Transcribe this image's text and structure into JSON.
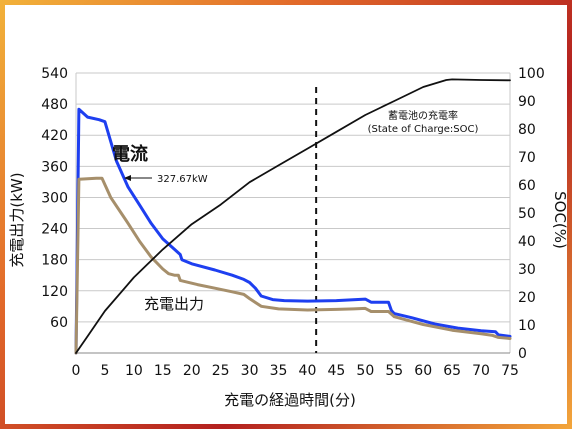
{
  "chart_data": {
    "type": "line",
    "x_label": "充電の経過時間(分)",
    "y_left_label": "充電出力(kW)",
    "y_right_label": "SOC(%)",
    "x_ticks": [
      "0",
      "5",
      "10",
      "15",
      "20",
      "25",
      "30",
      "35",
      "40",
      "45",
      "50",
      "55",
      "60",
      "65",
      "70",
      "75"
    ],
    "y_left_ticks": [
      "60",
      "120",
      "180",
      "240",
      "300",
      "360",
      "420",
      "480",
      "540"
    ],
    "y_right_ticks": [
      "0",
      "10",
      "20",
      "30",
      "40",
      "50",
      "60",
      "70",
      "80",
      "90",
      "100"
    ],
    "x_range": [
      0,
      75
    ],
    "y_left_range": [
      0,
      540
    ],
    "y_right_range": [
      0,
      100
    ],
    "vertical_marker_x": 41.5,
    "series": [
      {
        "name": "電流",
        "axis": "left",
        "color": "#1e3ff0",
        "points": [
          [
            0,
            0
          ],
          [
            0.5,
            470
          ],
          [
            2,
            455
          ],
          [
            4,
            450
          ],
          [
            5,
            446
          ],
          [
            7,
            370
          ],
          [
            9,
            320
          ],
          [
            11,
            285
          ],
          [
            13,
            250
          ],
          [
            15,
            220
          ],
          [
            17,
            200
          ],
          [
            18,
            190
          ],
          [
            18.3,
            180
          ],
          [
            20,
            172
          ],
          [
            24,
            160
          ],
          [
            27,
            150
          ],
          [
            29,
            142
          ],
          [
            30,
            136
          ],
          [
            31,
            125
          ],
          [
            32,
            110
          ],
          [
            34,
            103
          ],
          [
            36,
            101
          ],
          [
            40,
            100
          ],
          [
            45,
            101
          ],
          [
            50,
            104
          ],
          [
            51,
            98
          ],
          [
            54,
            98
          ],
          [
            54.5,
            82
          ],
          [
            55,
            76
          ],
          [
            58,
            68
          ],
          [
            62,
            56
          ],
          [
            66,
            48
          ],
          [
            70,
            43
          ],
          [
            72.5,
            41
          ],
          [
            73,
            35
          ],
          [
            75,
            32
          ]
        ]
      },
      {
        "name": "充電出力",
        "axis": "left",
        "color": "#a68f6b",
        "points": [
          [
            0,
            0
          ],
          [
            0.5,
            335
          ],
          [
            3.5,
            337
          ],
          [
            4.5,
            337
          ],
          [
            6,
            300
          ],
          [
            9,
            250
          ],
          [
            11,
            215
          ],
          [
            13,
            185
          ],
          [
            15,
            162
          ],
          [
            16,
            153
          ],
          [
            17,
            150
          ],
          [
            17.7,
            150
          ],
          [
            18,
            140
          ],
          [
            21,
            132
          ],
          [
            24,
            125
          ],
          [
            27,
            118
          ],
          [
            29,
            113
          ],
          [
            30,
            105
          ],
          [
            32,
            90
          ],
          [
            35,
            85
          ],
          [
            40,
            83
          ],
          [
            45,
            84
          ],
          [
            48,
            85
          ],
          [
            50,
            86
          ],
          [
            51,
            80
          ],
          [
            54,
            80
          ],
          [
            55,
            70
          ],
          [
            57,
            64
          ],
          [
            60,
            55
          ],
          [
            65,
            44
          ],
          [
            70,
            37
          ],
          [
            72,
            34
          ],
          [
            73,
            30
          ],
          [
            75,
            28
          ]
        ]
      },
      {
        "name": "蓄電池の充電率",
        "axis": "right",
        "color": "#111111",
        "points": [
          [
            0,
            0
          ],
          [
            2,
            6
          ],
          [
            5,
            15
          ],
          [
            10,
            27
          ],
          [
            15,
            37
          ],
          [
            20,
            46
          ],
          [
            25,
            53
          ],
          [
            30,
            61
          ],
          [
            35,
            67
          ],
          [
            40,
            73
          ],
          [
            45,
            79
          ],
          [
            50,
            85
          ],
          [
            55,
            90
          ],
          [
            60,
            95
          ],
          [
            64,
            97.5
          ],
          [
            65,
            97.7
          ],
          [
            70,
            97.5
          ],
          [
            75,
            97.4
          ]
        ]
      }
    ],
    "annotations": {
      "current": "電流",
      "current_peak": "327.67kW",
      "output": "充電出力",
      "soc_title": "蓄電池の充電率",
      "soc_subtitle": "(State of Charge:SOC)"
    }
  }
}
